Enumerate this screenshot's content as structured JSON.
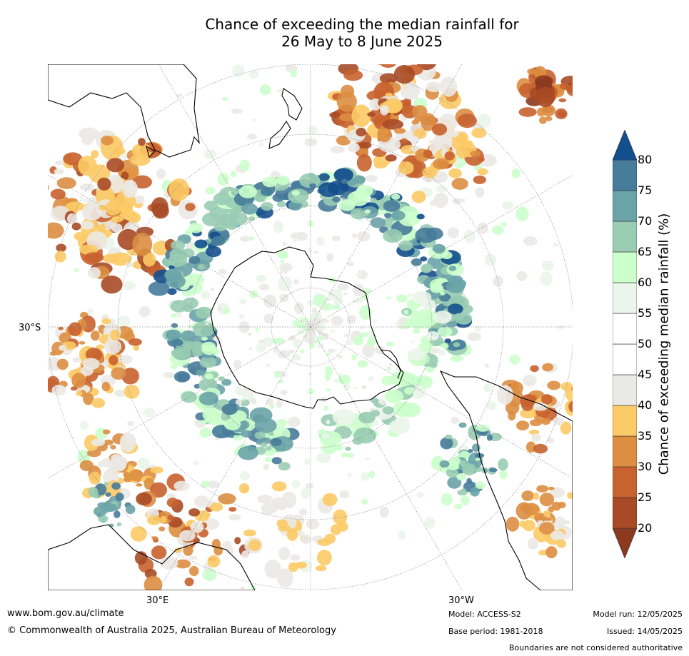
{
  "title": {
    "line1": "Chance of exceeding the median rainfall for",
    "line2": "26 May to 8 June 2025"
  },
  "map": {
    "projection": "south polar stereographic",
    "labels": {
      "lat_left": "30°S",
      "lon_bottom_left": "30°E",
      "lon_bottom_right": "30°W"
    },
    "colors": {
      "land_outline": "#000000",
      "graticule": "#888888"
    }
  },
  "colorbar": {
    "title": "Chance of exceeding median rainfall (%)",
    "ticks": [
      "20",
      "25",
      "30",
      "35",
      "40",
      "45",
      "50",
      "55",
      "60",
      "65",
      "70",
      "75",
      "80"
    ],
    "bins": [
      {
        "range": "<20",
        "color": "#8c3a1f"
      },
      {
        "range": "20-25",
        "color": "#a84a26"
      },
      {
        "range": "25-30",
        "color": "#c8622f"
      },
      {
        "range": "30-35",
        "color": "#dd8e41"
      },
      {
        "range": "35-40",
        "color": "#fcca66"
      },
      {
        "range": "40-45",
        "color": "#ebe9e5"
      },
      {
        "range": "45-50",
        "color": "#ffffff"
      },
      {
        "range": "50-55",
        "color": "#ffffff"
      },
      {
        "range": "55-60",
        "color": "#ebf5eb"
      },
      {
        "range": "60-65",
        "color": "#ccffcc"
      },
      {
        "range": "65-70",
        "color": "#99ccb3"
      },
      {
        "range": "70-75",
        "color": "#6aa3a8"
      },
      {
        "range": "75-80",
        "color": "#467b99"
      },
      {
        "range": ">80",
        "color": "#134f8c"
      }
    ]
  },
  "footer": {
    "website": "www.bom.gov.au/climate",
    "copyright": "© Commonwealth of Australia 2025, Australian Bureau of Meteorology",
    "model": "Model: ACCESS-S2",
    "base_period": "Base period: 1981-2018",
    "model_run": "Model run: 12/05/2025",
    "issued": "Issued: 14/05/2025",
    "disclaimer": "Boundaries are not considered authoritative"
  }
}
